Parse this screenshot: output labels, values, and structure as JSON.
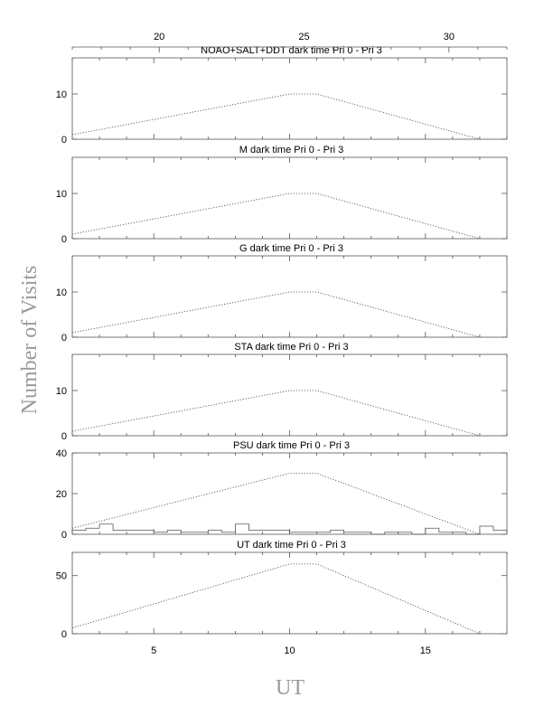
{
  "x_label": "UT",
  "y_label": "Number of Visits",
  "top_axis_tick_labels": [
    "20",
    "25",
    "30"
  ],
  "bottom_axis_tick_labels": [
    "5",
    "10",
    "15"
  ],
  "chart_data": [
    {
      "type": "line",
      "title": "NOAO+SALT+DDT dark time Pri 0 - Pri 3",
      "xlim": [
        2,
        18
      ],
      "ylim": [
        0,
        18
      ],
      "yticks": [
        0,
        10
      ],
      "dotted_x": [
        2,
        10,
        11,
        17
      ],
      "dotted_y": [
        1,
        10,
        10,
        0
      ]
    },
    {
      "type": "line",
      "title": "M    dark time Pri 0 - Pri 3",
      "xlim": [
        2,
        18
      ],
      "ylim": [
        0,
        18
      ],
      "yticks": [
        0,
        10
      ],
      "dotted_x": [
        2,
        10,
        11,
        17
      ],
      "dotted_y": [
        1,
        10,
        10,
        0
      ]
    },
    {
      "type": "line",
      "title": "G    dark time Pri 0 - Pri 3",
      "xlim": [
        2,
        18
      ],
      "ylim": [
        0,
        18
      ],
      "yticks": [
        0,
        10
      ],
      "dotted_x": [
        2,
        10,
        11,
        17
      ],
      "dotted_y": [
        1,
        10,
        10,
        0
      ]
    },
    {
      "type": "line",
      "title": "STA    dark time Pri 0 - Pri 3",
      "xlim": [
        2,
        18
      ],
      "ylim": [
        0,
        18
      ],
      "yticks": [
        0,
        10
      ],
      "dotted_x": [
        2,
        10,
        11,
        17
      ],
      "dotted_y": [
        1,
        10,
        10,
        0
      ]
    },
    {
      "type": "line",
      "title": "PSU    dark time Pri 0 - Pri 3",
      "xlim": [
        2,
        18
      ],
      "ylim": [
        0,
        40
      ],
      "yticks": [
        0,
        20,
        40
      ],
      "dotted_x": [
        2,
        10,
        11,
        17
      ],
      "dotted_y": [
        3,
        30,
        30,
        0
      ],
      "hist_edges": [
        2,
        2.5,
        3,
        3.5,
        4,
        4.5,
        5,
        5.5,
        6,
        6.5,
        7,
        7.5,
        8,
        8.5,
        9,
        9.5,
        10,
        10.5,
        11,
        11.5,
        12,
        12.5,
        13,
        13.5,
        14,
        14.5,
        15,
        15.5,
        16,
        16.5,
        17,
        17.5,
        18
      ],
      "hist_values": [
        2,
        3,
        5,
        2,
        2,
        2,
        1,
        2,
        1,
        1,
        2,
        1,
        5,
        2,
        2,
        2,
        1,
        1,
        1,
        2,
        1,
        1,
        0,
        1,
        1,
        0,
        3,
        1,
        1,
        0,
        4,
        2
      ]
    },
    {
      "type": "line",
      "title": "UT    dark time Pri 0 - Pri 3",
      "xlim": [
        2,
        18
      ],
      "ylim": [
        0,
        70
      ],
      "yticks": [
        0,
        50
      ],
      "dotted_x": [
        2,
        10,
        11,
        17
      ],
      "dotted_y": [
        5,
        60,
        60,
        0
      ]
    }
  ]
}
